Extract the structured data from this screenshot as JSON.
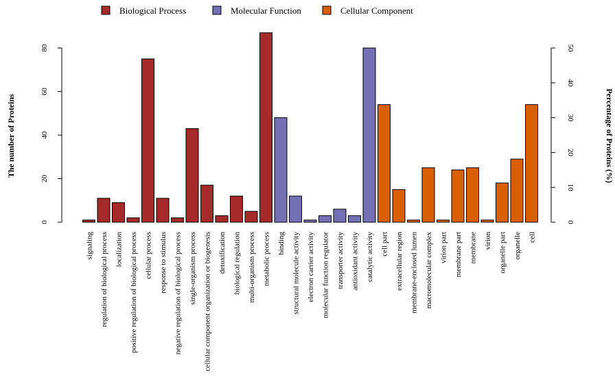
{
  "chart_data": {
    "type": "bar",
    "title": "",
    "ylabel": "The number of Proteins",
    "y2label": "Percentage of Proteins (%)",
    "ylim": [
      0,
      80
    ],
    "yticks": [
      0,
      20,
      40,
      60,
      80
    ],
    "y2lim": [
      0,
      50
    ],
    "y2ticks": [
      0,
      10,
      20,
      30,
      40,
      50
    ],
    "grid": false,
    "legend_position": "top",
    "series": [
      {
        "name": "Biological Process",
        "color": "#a52a2a"
      },
      {
        "name": "Molecular Function",
        "color": "#7570b3"
      },
      {
        "name": "Cellular Component",
        "color": "#d95f02"
      }
    ],
    "categories": [
      "signaling",
      "regulation of biological process",
      "localization",
      "positive regulation of biological process",
      "cellular process",
      "response to stimulus",
      "negative regulation of biological process",
      "single-organism process",
      "cellular component organization or biogenesis",
      "detoxification",
      "biological regulation",
      "multi-organism process",
      "metabolic process",
      "binding",
      "structural molecule activity",
      "electron carrier activity",
      "molecular function regulator",
      "transporter activity",
      "antioxidant activity",
      "catalytic activity",
      "cell part",
      "extracellular region",
      "membrane-enclosed lumen",
      "macromolecular complex",
      "virion part",
      "membrane part",
      "membrane",
      "virion",
      "organelle part",
      "organelle",
      "cell"
    ],
    "values": [
      1,
      11,
      9,
      2,
      75,
      11,
      2,
      43,
      17,
      3,
      12,
      5,
      87,
      48,
      12,
      1,
      3,
      6,
      3,
      80,
      54,
      15,
      1,
      25,
      1,
      24,
      25,
      1,
      18,
      29,
      54
    ],
    "groups": [
      "Biological Process",
      "Biological Process",
      "Biological Process",
      "Biological Process",
      "Biological Process",
      "Biological Process",
      "Biological Process",
      "Biological Process",
      "Biological Process",
      "Biological Process",
      "Biological Process",
      "Biological Process",
      "Biological Process",
      "Molecular Function",
      "Molecular Function",
      "Molecular Function",
      "Molecular Function",
      "Molecular Function",
      "Molecular Function",
      "Molecular Function",
      "Cellular Component",
      "Cellular Component",
      "Cellular Component",
      "Cellular Component",
      "Cellular Component",
      "Cellular Component",
      "Cellular Component",
      "Cellular Component",
      "Cellular Component",
      "Cellular Component",
      "Cellular Component"
    ]
  }
}
